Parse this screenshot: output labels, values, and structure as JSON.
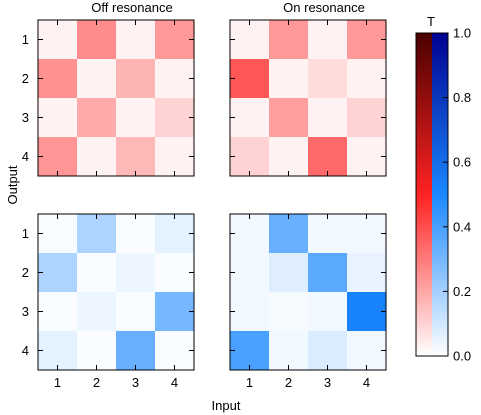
{
  "chart_data": {
    "type": "heatmap",
    "panel_titles": [
      "Off resonance",
      "On resonance"
    ],
    "xlabel": "Input",
    "ylabel": "Output",
    "x_ticks": [
      "1",
      "2",
      "3",
      "4"
    ],
    "y_ticks": [
      "1",
      "2",
      "3",
      "4"
    ],
    "colorbar": {
      "title": "T",
      "range": [
        0.0,
        1.0
      ],
      "ticks": [
        "0.0",
        "0.2",
        "0.4",
        "0.6",
        "0.8",
        "1.0"
      ],
      "tick_values": [
        0.0,
        0.2,
        0.4,
        0.6,
        0.8,
        1.0
      ],
      "red_stops": [
        "#ffffff",
        "#ff2222",
        "#4a0000"
      ],
      "blue_stops": [
        "#ffffff",
        "#1a88ff",
        "#000090"
      ]
    },
    "panels": [
      {
        "name": "top-left",
        "scale": "red",
        "matrix": [
          [
            0.03,
            0.26,
            0.03,
            0.23
          ],
          [
            0.25,
            0.03,
            0.17,
            0.03
          ],
          [
            0.03,
            0.19,
            0.03,
            0.1
          ],
          [
            0.24,
            0.03,
            0.16,
            0.03
          ]
        ]
      },
      {
        "name": "top-right",
        "scale": "red",
        "matrix": [
          [
            0.03,
            0.23,
            0.03,
            0.23
          ],
          [
            0.38,
            0.03,
            0.08,
            0.03
          ],
          [
            0.03,
            0.22,
            0.03,
            0.1
          ],
          [
            0.1,
            0.03,
            0.34,
            0.03
          ]
        ]
      },
      {
        "name": "bottom-left",
        "scale": "blue",
        "matrix": [
          [
            0.01,
            0.18,
            0.01,
            0.06
          ],
          [
            0.18,
            0.01,
            0.04,
            0.01
          ],
          [
            0.01,
            0.04,
            0.01,
            0.3
          ],
          [
            0.06,
            0.01,
            0.33,
            0.01
          ]
        ]
      },
      {
        "name": "bottom-right",
        "scale": "blue",
        "matrix": [
          [
            0.03,
            0.33,
            0.03,
            0.03
          ],
          [
            0.03,
            0.07,
            0.36,
            0.05
          ],
          [
            0.03,
            0.02,
            0.03,
            0.52
          ],
          [
            0.4,
            0.03,
            0.08,
            0.03
          ]
        ]
      }
    ]
  }
}
